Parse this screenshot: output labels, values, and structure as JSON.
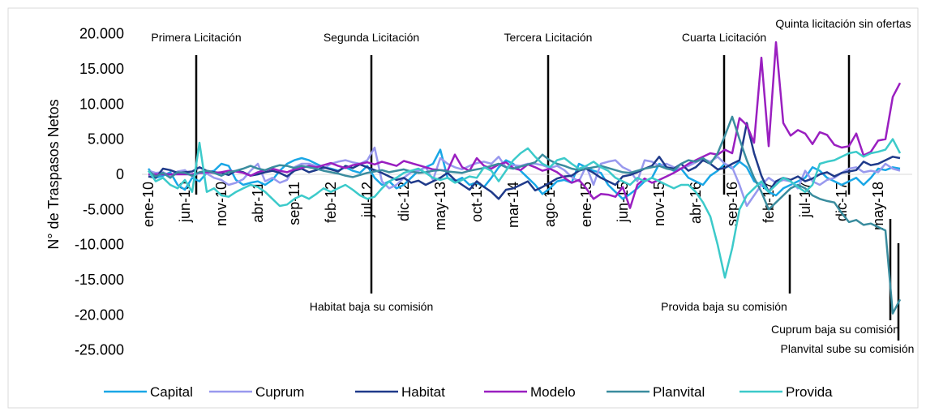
{
  "chart_data": {
    "type": "line",
    "y_label": "N° de Traspasos Netos",
    "categories": [
      "ene-10",
      null,
      null,
      null,
      null,
      "jun-10",
      null,
      null,
      null,
      null,
      "nov-10",
      null,
      null,
      null,
      null,
      "abr-11",
      null,
      null,
      null,
      null,
      "sep-11",
      null,
      null,
      null,
      null,
      "feb-12",
      null,
      null,
      null,
      null,
      "jul-12",
      null,
      null,
      null,
      null,
      "dic-12",
      null,
      null,
      null,
      null,
      "may-13",
      null,
      null,
      null,
      null,
      "oct-13",
      null,
      null,
      null,
      null,
      "mar-14",
      null,
      null,
      null,
      null,
      "ago-14",
      null,
      null,
      null,
      null,
      "ene-15",
      null,
      null,
      null,
      null,
      "jun-15",
      null,
      null,
      null,
      null,
      "nov-15",
      null,
      null,
      null,
      null,
      "abr-16",
      null,
      null,
      null,
      null,
      "sep-16",
      null,
      null,
      null,
      null,
      "feb-17",
      null,
      null,
      null,
      null,
      "jul-17",
      null,
      null,
      null,
      null,
      "dic-17",
      null,
      null,
      null,
      null,
      "may-18",
      null,
      null,
      null
    ],
    "ylim": [
      -25000,
      20000
    ],
    "yticks": [
      {
        "value": 20000,
        "label": "20.000"
      },
      {
        "value": 15000,
        "label": "15.000"
      },
      {
        "value": 10000,
        "label": "10.000"
      },
      {
        "value": 5000,
        "label": "5.000"
      },
      0,
      {
        "value": -5000,
        "label": "-5.000"
      },
      {
        "value": -10000,
        "label": "-10.000"
      },
      {
        "value": -15000,
        "label": "-15.000"
      },
      {
        "value": -20000,
        "label": "-20.000"
      },
      {
        "value": -25000,
        "label": "-25.000"
      }
    ],
    "series": [
      {
        "name": "Capital",
        "color": "#1aa7e6",
        "values": [
          800,
          -500,
          -200,
          300,
          -1500,
          -2200,
          -500,
          -1000,
          200,
          500,
          1500,
          1200,
          -800,
          -1500,
          -1200,
          -1000,
          -1500,
          -800,
          500,
          1500,
          2000,
          2300,
          2000,
          1500,
          1000,
          800,
          500,
          1000,
          500,
          200,
          1200,
          -500,
          -1500,
          -1000,
          -2000,
          -1500,
          -500,
          500,
          1000,
          1500,
          3500,
          -500,
          -1000,
          -500,
          -1500,
          -1200,
          -1800,
          -500,
          1000,
          2000,
          1500,
          500,
          -500,
          -1500,
          -2800,
          -2000,
          -1000,
          -800,
          -1200,
          1500,
          1000,
          500,
          200,
          -1500,
          -2500,
          -3500,
          -2800,
          -2000,
          -1000,
          -500,
          1500,
          1000,
          500,
          800,
          -500,
          -1000,
          -1500,
          -200,
          500,
          1500,
          800,
          1800,
          1000,
          -1000,
          -1500,
          -2500,
          -3000,
          -2000,
          -1500,
          -1000,
          -500,
          1000,
          500,
          -500,
          -1000,
          -1500,
          -1000,
          -500,
          -1500,
          -500,
          800,
          600,
          1000,
          800
        ]
      },
      {
        "name": "Cuprum",
        "color": "#9999ee",
        "values": [
          500,
          200,
          300,
          -200,
          400,
          600,
          -300,
          200,
          100,
          -500,
          -800,
          -1500,
          -1200,
          -700,
          500,
          1500,
          -1000,
          -500,
          -1200,
          -800,
          1000,
          1500,
          1500,
          1200,
          800,
          1500,
          1800,
          2000,
          1700,
          1500,
          2000,
          3800,
          -1000,
          -2000,
          -1500,
          -500,
          300,
          500,
          1000,
          -800,
          2300,
          1500,
          1000,
          700,
          1200,
          1600,
          1800,
          1500,
          2500,
          1000,
          1300,
          1200,
          1500,
          1500,
          1300,
          900,
          1200,
          600,
          -400,
          -1000,
          1200,
          -1500,
          1500,
          1800,
          2000,
          1000,
          500,
          -1000,
          2000,
          1800,
          1200,
          1500,
          1000,
          800,
          1200,
          1700,
          2200,
          1800,
          2500,
          1500,
          1000,
          -1500,
          -4500,
          -3000,
          -1500,
          -500,
          -1200,
          -800,
          -1000,
          -2000,
          500,
          -1000,
          -1500,
          -800,
          -500,
          200,
          800,
          1000,
          300,
          500,
          300,
          1500,
          800,
          500
        ]
      },
      {
        "name": "Habitat",
        "color": "#1f3a8a",
        "values": [
          -300,
          -500,
          800,
          600,
          200,
          300,
          400,
          1000,
          500,
          300,
          200,
          -100,
          500,
          300,
          -200,
          0,
          300,
          500,
          200,
          -300,
          500,
          800,
          300,
          600,
          1000,
          700,
          400,
          1200,
          900,
          1400,
          1000,
          600,
          200,
          -300,
          -800,
          -500,
          -1200,
          -900,
          -1500,
          -1000,
          -500,
          200,
          -800,
          -1500,
          -2200,
          -1000,
          -1800,
          -2500,
          -3500,
          -2200,
          -2000,
          -1500,
          -1000,
          -2300,
          -1800,
          -1200,
          -600,
          -300,
          -200,
          500,
          800,
          200,
          -500,
          -1000,
          -1500,
          -300,
          -100,
          300,
          800,
          1200,
          2500,
          1000,
          800,
          1500,
          500,
          1000,
          2000,
          1500,
          700,
          900,
          1500,
          2000,
          7300,
          3000,
          -200,
          -2500,
          -1000,
          -500,
          -800,
          -300,
          -1000,
          -600,
          0,
          300,
          -300,
          200,
          400,
          600,
          1800,
          1300,
          1500,
          2000,
          2500,
          2300
        ]
      },
      {
        "name": "Modelo",
        "color": "#9a1fc0",
        "values": [
          0,
          0,
          0,
          0,
          0,
          0,
          0,
          200,
          300,
          200,
          300,
          500,
          400,
          200,
          -200,
          300,
          600,
          800,
          500,
          300,
          700,
          900,
          1200,
          1000,
          1300,
          1600,
          1200,
          900,
          1300,
          1500,
          1700,
          1400,
          1800,
          1500,
          1200,
          1900,
          1600,
          1300,
          1000,
          700,
          600,
          500,
          2800,
          1000,
          500,
          2300,
          1200,
          800,
          1400,
          1700,
          900,
          600,
          1400,
          1000,
          500,
          800,
          300,
          -500,
          -1200,
          -800,
          -2000,
          -3500,
          -2800,
          -2900,
          -3200,
          -1800,
          -4800,
          -1500,
          -600,
          -1200,
          -800,
          -300,
          200,
          800,
          1500,
          2000,
          2500,
          3000,
          2800,
          3500,
          3000,
          8000,
          7000,
          4500,
          16600,
          4000,
          18800,
          7300,
          5500,
          6300,
          5800,
          4300,
          6000,
          5600,
          4200,
          3800,
          4000,
          5800,
          2700,
          3200,
          4800,
          5000,
          11000,
          13000
        ]
      },
      {
        "name": "Planvital",
        "color": "#3a8c9e",
        "values": [
          500,
          -300,
          200,
          -500,
          300,
          200,
          -200,
          300,
          500,
          200,
          -200,
          300,
          500,
          800,
          1200,
          800,
          600,
          1000,
          1300,
          1200,
          900,
          1200,
          1000,
          800,
          500,
          300,
          100,
          -200,
          -400,
          -100,
          200,
          400,
          600,
          300,
          500,
          700,
          400,
          200,
          300,
          500,
          600,
          400,
          300,
          200,
          500,
          700,
          900,
          1200,
          1500,
          1000,
          800,
          1100,
          1400,
          1700,
          2800,
          2000,
          1500,
          1200,
          800,
          600,
          800,
          1000,
          1200,
          900,
          600,
          300,
          200,
          500,
          800,
          1000,
          1200,
          800,
          600,
          1500,
          2000,
          1800,
          2300,
          1500,
          3000,
          5500,
          8200,
          5000,
          2000,
          -500,
          -2500,
          -5000,
          -4000,
          -3000,
          -2000,
          -1500,
          -2000,
          -3000,
          -3500,
          -3800,
          -4000,
          -5500,
          -6800,
          -6500,
          -7200,
          -7000,
          -7500,
          -8000,
          -19800,
          -17800
        ]
      },
      {
        "name": "Provida",
        "color": "#3ccaca",
        "values": [
          500,
          -1000,
          -500,
          -1500,
          -2000,
          -800,
          -2500,
          4500,
          -2500,
          -2000,
          -3000,
          -3200,
          -2500,
          -2000,
          -1500,
          -1800,
          -2500,
          -3500,
          -4500,
          -4300,
          -3500,
          -3000,
          -3500,
          -2800,
          -2000,
          -2500,
          -2000,
          -1500,
          -2200,
          -3000,
          -3500,
          -3200,
          -2000,
          -1000,
          -500,
          200,
          500,
          800,
          200,
          -500,
          -800,
          -500,
          -1200,
          -800,
          -300,
          -500,
          1000,
          500,
          -1000,
          500,
          2000,
          3000,
          3700,
          2500,
          1500,
          1000,
          2000,
          2300,
          1500,
          800,
          1200,
          1800,
          1000,
          500,
          -500,
          -1000,
          -1500,
          -500,
          -1000,
          -500,
          -1000,
          -1500,
          -2000,
          -1500,
          -1500,
          -2500,
          -4000,
          -6000,
          -10000,
          -14700,
          -10500,
          -5000,
          -3000,
          -2000,
          -1000,
          -2500,
          -1500,
          -500,
          -1000,
          -1800,
          -2500,
          -1500,
          1500,
          1800,
          2000,
          2500,
          3000,
          3200,
          2500,
          3000,
          3200,
          3500,
          5000,
          3000
        ]
      }
    ],
    "annotations": [
      "Primera Licitación",
      "Segunda Licitación",
      "Tercera Licitación",
      "Cuarta Licitación",
      "Quinta licitación sin ofertas",
      "Habitat baja su comisión",
      "Provida baja su comisión",
      "Cuprum baja su comisión",
      "Planvital sube su comisión"
    ],
    "legend": "bottom"
  }
}
